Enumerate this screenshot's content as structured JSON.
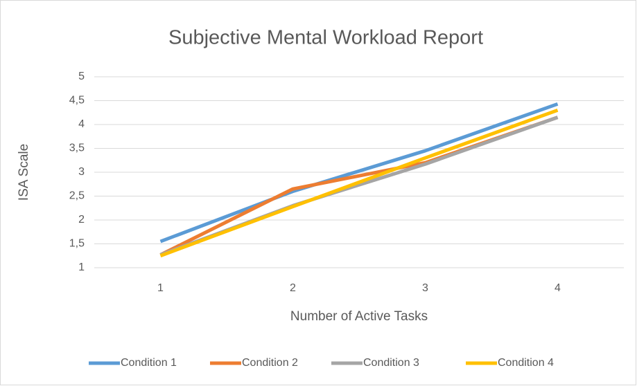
{
  "chart_data": {
    "type": "line",
    "title": "Subjective Mental Workload Report",
    "x_label": "Number of Active Tasks",
    "y_label": "ISA Scale",
    "categories": [
      "1",
      "2",
      "3",
      "4"
    ],
    "series": [
      {
        "name": "Condition 1",
        "color": "#5b9bd5",
        "values": [
          1.55,
          2.6,
          3.45,
          4.43
        ]
      },
      {
        "name": "Condition 2",
        "color": "#ed7d31",
        "values": [
          1.27,
          2.65,
          3.2,
          4.15
        ]
      },
      {
        "name": "Condition 3",
        "color": "#a5a5a5",
        "values": [
          1.27,
          2.3,
          3.17,
          4.15
        ]
      },
      {
        "name": "Condition 4",
        "color": "#ffc000",
        "values": [
          1.25,
          2.28,
          3.3,
          4.3
        ]
      }
    ],
    "ylim": [
      1,
      5
    ],
    "yticks": [
      1,
      {
        "value": 1.5,
        "label": "1,5"
      },
      2,
      {
        "value": 2.5,
        "label": "2,5"
      },
      3,
      {
        "value": 3.5,
        "label": "3,5"
      },
      4,
      {
        "value": 4.5,
        "label": "4,5"
      },
      5
    ],
    "grid": true,
    "legend": "bottom"
  }
}
